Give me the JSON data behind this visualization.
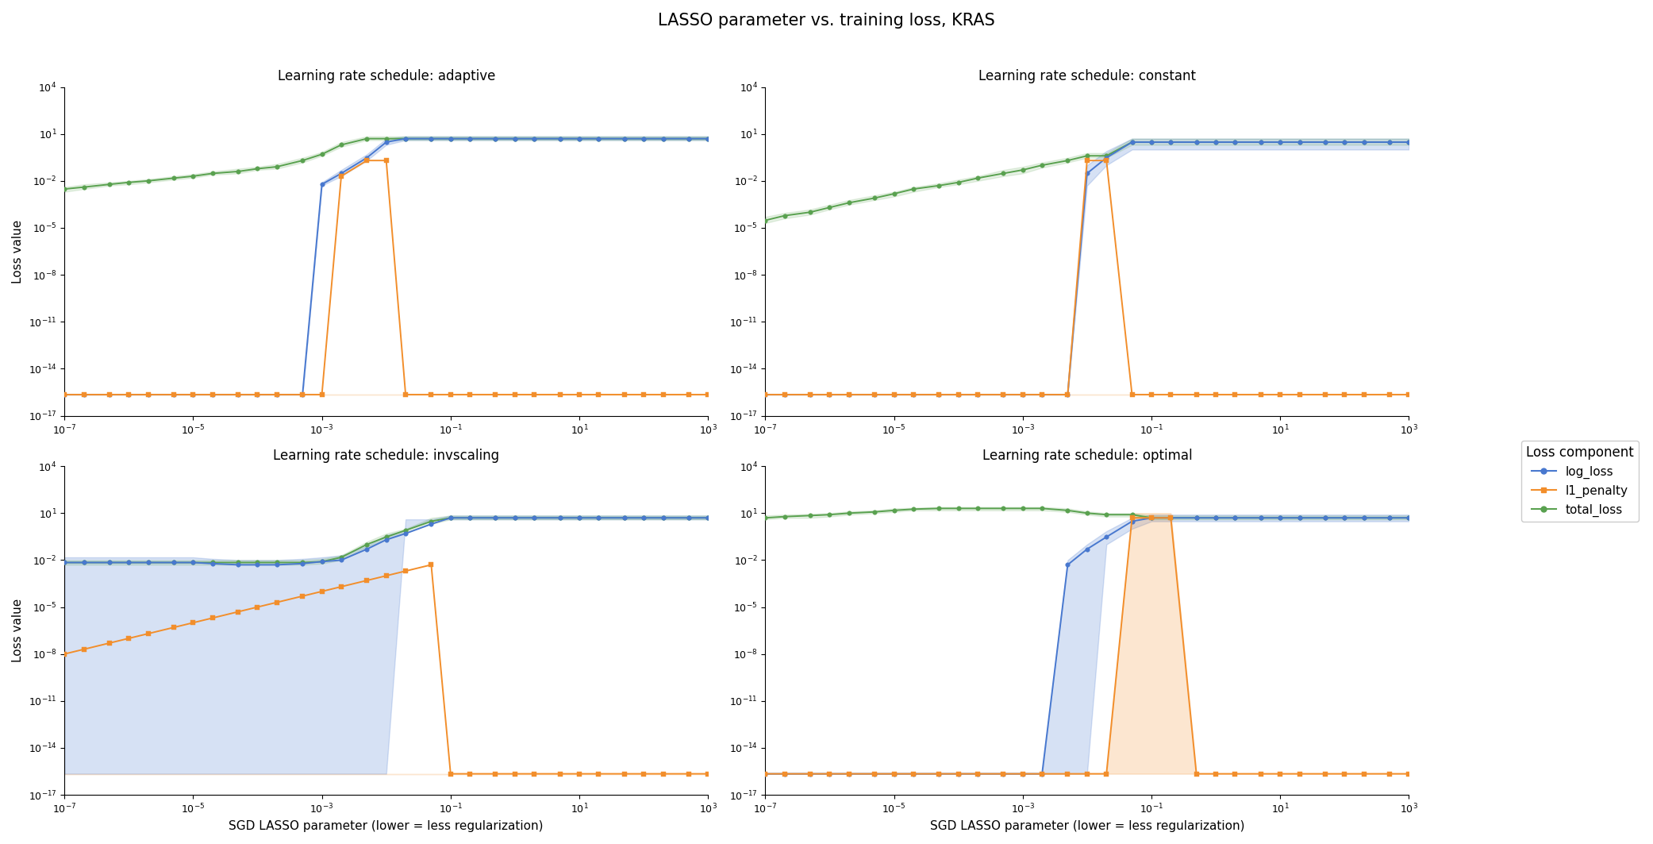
{
  "title": "LASSO parameter vs. training loss, KRAS",
  "xlabel": "SGD LASSO parameter (lower = less regularization)",
  "ylabel": "Loss value",
  "legend_title": "Loss component",
  "subplot_titles": [
    "Learning rate schedule: adaptive",
    "Learning rate schedule: constant",
    "Learning rate schedule: invscaling",
    "Learning rate schedule: optimal"
  ],
  "x_values": [
    1e-07,
    2e-07,
    5e-07,
    1e-06,
    2e-06,
    5e-06,
    1e-05,
    2e-05,
    5e-05,
    0.0001,
    0.0002,
    0.0005,
    0.001,
    0.002,
    0.005,
    0.01,
    0.02,
    0.05,
    0.1,
    0.2,
    0.5,
    1.0,
    2.0,
    5.0,
    10.0,
    20.0,
    50.0,
    100.0,
    200.0,
    500.0,
    1000.0
  ],
  "eps": 2.22e-16,
  "colors": {
    "log_loss": "#4878cf",
    "l1_penalty": "#f28e2b",
    "total_loss": "#59a14f"
  },
  "adaptive": {
    "log_loss_mean": [
      2.22e-16,
      2.22e-16,
      2.22e-16,
      2.22e-16,
      2.22e-16,
      2.22e-16,
      2.22e-16,
      2.22e-16,
      2.22e-16,
      2.22e-16,
      2.22e-16,
      2.22e-16,
      0.006,
      0.03,
      0.3,
      3.0,
      5.0,
      5.0,
      5.0,
      5.0,
      5.0,
      5.0,
      5.0,
      5.0,
      5.0,
      5.0,
      5.0,
      5.0,
      5.0,
      5.0,
      5.0
    ],
    "log_loss_min": [
      2.22e-16,
      2.22e-16,
      2.22e-16,
      2.22e-16,
      2.22e-16,
      2.22e-16,
      2.22e-16,
      2.22e-16,
      2.22e-16,
      2.22e-16,
      2.22e-16,
      2.22e-16,
      0.005,
      0.02,
      0.2,
      2.0,
      4.0,
      4.0,
      4.0,
      4.0,
      4.0,
      4.0,
      4.0,
      4.0,
      4.0,
      4.0,
      4.0,
      4.0,
      4.0,
      4.0,
      4.0
    ],
    "log_loss_max": [
      2.22e-16,
      2.22e-16,
      2.22e-16,
      2.22e-16,
      2.22e-16,
      2.22e-16,
      2.22e-16,
      2.22e-16,
      2.22e-16,
      2.22e-16,
      2.22e-16,
      2.22e-16,
      0.008,
      0.05,
      0.5,
      5.0,
      7.0,
      7.0,
      7.0,
      7.0,
      7.0,
      7.0,
      7.0,
      7.0,
      7.0,
      7.0,
      7.0,
      7.0,
      7.0,
      7.0,
      7.0
    ],
    "l1_penalty_mean": [
      2.22e-16,
      2.22e-16,
      2.22e-16,
      2.22e-16,
      2.22e-16,
      2.22e-16,
      2.22e-16,
      2.22e-16,
      2.22e-16,
      2.22e-16,
      2.22e-16,
      2.22e-16,
      2.22e-16,
      0.02,
      0.2,
      0.2,
      2.22e-16,
      2.22e-16,
      2.22e-16,
      2.22e-16,
      2.22e-16,
      2.22e-16,
      2.22e-16,
      2.22e-16,
      2.22e-16,
      2.22e-16,
      2.22e-16,
      2.22e-16,
      2.22e-16,
      2.22e-16,
      2.22e-16
    ],
    "l1_penalty_min": [
      2.22e-16,
      2.22e-16,
      2.22e-16,
      2.22e-16,
      2.22e-16,
      2.22e-16,
      2.22e-16,
      2.22e-16,
      2.22e-16,
      2.22e-16,
      2.22e-16,
      2.22e-16,
      2.22e-16,
      2.22e-16,
      2.22e-16,
      2.22e-16,
      2.22e-16,
      2.22e-16,
      2.22e-16,
      2.22e-16,
      2.22e-16,
      2.22e-16,
      2.22e-16,
      2.22e-16,
      2.22e-16,
      2.22e-16,
      2.22e-16,
      2.22e-16,
      2.22e-16,
      2.22e-16,
      2.22e-16
    ],
    "l1_penalty_max": [
      2.22e-16,
      2.22e-16,
      2.22e-16,
      2.22e-16,
      2.22e-16,
      2.22e-16,
      2.22e-16,
      2.22e-16,
      2.22e-16,
      2.22e-16,
      2.22e-16,
      2.22e-16,
      2.22e-16,
      2.22e-16,
      2.22e-16,
      2.22e-16,
      2.22e-16,
      2.22e-16,
      2.22e-16,
      2.22e-16,
      2.22e-16,
      2.22e-16,
      2.22e-16,
      2.22e-16,
      2.22e-16,
      2.22e-16,
      2.22e-16,
      2.22e-16,
      2.22e-16,
      2.22e-16,
      2.22e-16
    ],
    "total_loss_mean": [
      0.003,
      0.004,
      0.006,
      0.008,
      0.01,
      0.015,
      0.02,
      0.03,
      0.04,
      0.06,
      0.08,
      0.2,
      0.5,
      2.0,
      5.0,
      5.0,
      5.0,
      5.0,
      5.0,
      5.0,
      5.0,
      5.0,
      5.0,
      5.0,
      5.0,
      5.0,
      5.0,
      5.0,
      5.0,
      5.0,
      5.0
    ],
    "total_loss_min": [
      0.002,
      0.003,
      0.005,
      0.006,
      0.008,
      0.012,
      0.016,
      0.025,
      0.03,
      0.05,
      0.06,
      0.15,
      0.4,
      1.5,
      4.0,
      4.0,
      4.0,
      4.0,
      4.0,
      4.0,
      4.0,
      4.0,
      4.0,
      4.0,
      4.0,
      4.0,
      4.0,
      4.0,
      4.0,
      4.0,
      4.0
    ],
    "total_loss_max": [
      0.004,
      0.006,
      0.008,
      0.01,
      0.013,
      0.02,
      0.027,
      0.04,
      0.06,
      0.08,
      0.12,
      0.3,
      0.7,
      3.0,
      7.0,
      7.0,
      7.0,
      7.0,
      7.0,
      7.0,
      7.0,
      7.0,
      7.0,
      7.0,
      7.0,
      7.0,
      7.0,
      7.0,
      7.0,
      7.0,
      7.0
    ]
  },
  "constant": {
    "log_loss_mean": [
      2.22e-16,
      2.22e-16,
      2.22e-16,
      2.22e-16,
      2.22e-16,
      2.22e-16,
      2.22e-16,
      2.22e-16,
      2.22e-16,
      2.22e-16,
      2.22e-16,
      2.22e-16,
      2.22e-16,
      2.22e-16,
      2.22e-16,
      0.03,
      0.3,
      3.0,
      3.0,
      3.0,
      3.0,
      3.0,
      3.0,
      3.0,
      3.0,
      3.0,
      3.0,
      3.0,
      3.0,
      3.0,
      3.0
    ],
    "log_loss_min": [
      2.22e-16,
      2.22e-16,
      2.22e-16,
      2.22e-16,
      2.22e-16,
      2.22e-16,
      2.22e-16,
      2.22e-16,
      2.22e-16,
      2.22e-16,
      2.22e-16,
      2.22e-16,
      2.22e-16,
      2.22e-16,
      2.22e-16,
      0.005,
      0.1,
      1.0,
      1.0,
      1.0,
      1.0,
      1.0,
      1.0,
      1.0,
      1.0,
      1.0,
      1.0,
      1.0,
      1.0,
      1.0,
      1.0
    ],
    "log_loss_max": [
      2.22e-16,
      2.22e-16,
      2.22e-16,
      2.22e-16,
      2.22e-16,
      2.22e-16,
      2.22e-16,
      2.22e-16,
      2.22e-16,
      2.22e-16,
      2.22e-16,
      2.22e-16,
      2.22e-16,
      2.22e-16,
      2.22e-16,
      0.1,
      0.8,
      5.0,
      5.0,
      5.0,
      5.0,
      5.0,
      5.0,
      5.0,
      5.0,
      5.0,
      5.0,
      5.0,
      5.0,
      5.0,
      5.0
    ],
    "l1_penalty_mean": [
      2.22e-16,
      2.22e-16,
      2.22e-16,
      2.22e-16,
      2.22e-16,
      2.22e-16,
      2.22e-16,
      2.22e-16,
      2.22e-16,
      2.22e-16,
      2.22e-16,
      2.22e-16,
      2.22e-16,
      2.22e-16,
      2.22e-16,
      0.2,
      0.2,
      2.22e-16,
      2.22e-16,
      2.22e-16,
      2.22e-16,
      2.22e-16,
      2.22e-16,
      2.22e-16,
      2.22e-16,
      2.22e-16,
      2.22e-16,
      2.22e-16,
      2.22e-16,
      2.22e-16,
      2.22e-16
    ],
    "l1_penalty_min": [
      2.22e-16,
      2.22e-16,
      2.22e-16,
      2.22e-16,
      2.22e-16,
      2.22e-16,
      2.22e-16,
      2.22e-16,
      2.22e-16,
      2.22e-16,
      2.22e-16,
      2.22e-16,
      2.22e-16,
      2.22e-16,
      2.22e-16,
      2.22e-16,
      2.22e-16,
      2.22e-16,
      2.22e-16,
      2.22e-16,
      2.22e-16,
      2.22e-16,
      2.22e-16,
      2.22e-16,
      2.22e-16,
      2.22e-16,
      2.22e-16,
      2.22e-16,
      2.22e-16,
      2.22e-16,
      2.22e-16
    ],
    "l1_penalty_max": [
      2.22e-16,
      2.22e-16,
      2.22e-16,
      2.22e-16,
      2.22e-16,
      2.22e-16,
      2.22e-16,
      2.22e-16,
      2.22e-16,
      2.22e-16,
      2.22e-16,
      2.22e-16,
      2.22e-16,
      2.22e-16,
      2.22e-16,
      2.22e-16,
      2.22e-16,
      2.22e-16,
      2.22e-16,
      2.22e-16,
      2.22e-16,
      2.22e-16,
      2.22e-16,
      2.22e-16,
      2.22e-16,
      2.22e-16,
      2.22e-16,
      2.22e-16,
      2.22e-16,
      2.22e-16,
      2.22e-16
    ],
    "total_loss_mean": [
      3e-05,
      6e-05,
      0.0001,
      0.0002,
      0.0004,
      0.0008,
      0.0015,
      0.003,
      0.005,
      0.008,
      0.015,
      0.03,
      0.05,
      0.1,
      0.2,
      0.4,
      0.4,
      3.0,
      3.0,
      3.0,
      3.0,
      3.0,
      3.0,
      3.0,
      3.0,
      3.0,
      3.0,
      3.0,
      3.0,
      3.0,
      3.0
    ],
    "total_loss_min": [
      2e-05,
      4e-05,
      7e-05,
      0.00015,
      0.0003,
      0.0006,
      0.001,
      0.002,
      0.004,
      0.006,
      0.01,
      0.02,
      0.03,
      0.07,
      0.15,
      0.3,
      0.3,
      2.0,
      2.0,
      2.0,
      2.0,
      2.0,
      2.0,
      2.0,
      2.0,
      2.0,
      2.0,
      2.0,
      2.0,
      2.0,
      2.0
    ],
    "total_loss_max": [
      5e-05,
      9e-05,
      0.00015,
      0.0003,
      0.0006,
      0.0012,
      0.002,
      0.004,
      0.007,
      0.012,
      0.02,
      0.05,
      0.08,
      0.15,
      0.3,
      0.6,
      0.6,
      5.0,
      5.0,
      5.0,
      5.0,
      5.0,
      5.0,
      5.0,
      5.0,
      5.0,
      5.0,
      5.0,
      5.0,
      5.0,
      5.0
    ]
  },
  "invscaling": {
    "log_loss_mean": [
      0.007,
      0.007,
      0.007,
      0.007,
      0.007,
      0.007,
      0.007,
      0.006,
      0.005,
      0.005,
      0.005,
      0.006,
      0.008,
      0.01,
      0.05,
      0.2,
      0.5,
      2.0,
      5.0,
      5.0,
      5.0,
      5.0,
      5.0,
      5.0,
      5.0,
      5.0,
      5.0,
      5.0,
      5.0,
      5.0,
      5.0
    ],
    "log_loss_min": [
      2.22e-16,
      2.22e-16,
      2.22e-16,
      2.22e-16,
      2.22e-16,
      2.22e-16,
      2.22e-16,
      2.22e-16,
      2.22e-16,
      2.22e-16,
      2.22e-16,
      2.22e-16,
      2.22e-16,
      2.22e-16,
      2.22e-16,
      2.22e-16,
      4.0,
      4.0,
      4.0,
      4.0,
      4.0,
      4.0,
      4.0,
      4.0,
      4.0,
      4.0,
      4.0,
      4.0,
      4.0,
      4.0,
      4.0
    ],
    "log_loss_max": [
      0.015,
      0.015,
      0.015,
      0.015,
      0.015,
      0.015,
      0.015,
      0.012,
      0.01,
      0.01,
      0.01,
      0.012,
      0.015,
      0.02,
      0.08,
      0.4,
      0.8,
      4.0,
      7.0,
      7.0,
      7.0,
      7.0,
      7.0,
      7.0,
      7.0,
      7.0,
      7.0,
      7.0,
      7.0,
      7.0,
      7.0
    ],
    "l1_penalty_mean": [
      1e-08,
      2e-08,
      5e-08,
      1e-07,
      2e-07,
      5e-07,
      1e-06,
      2e-06,
      5e-06,
      1e-05,
      2e-05,
      5e-05,
      0.0001,
      0.0002,
      0.0005,
      0.001,
      0.002,
      0.005,
      2.22e-16,
      2.22e-16,
      2.22e-16,
      2.22e-16,
      2.22e-16,
      2.22e-16,
      2.22e-16,
      2.22e-16,
      2.22e-16,
      2.22e-16,
      2.22e-16,
      2.22e-16,
      2.22e-16
    ],
    "l1_penalty_min": [
      2.22e-16,
      2.22e-16,
      2.22e-16,
      2.22e-16,
      2.22e-16,
      2.22e-16,
      2.22e-16,
      2.22e-16,
      2.22e-16,
      2.22e-16,
      2.22e-16,
      2.22e-16,
      2.22e-16,
      2.22e-16,
      2.22e-16,
      2.22e-16,
      2.22e-16,
      2.22e-16,
      2.22e-16,
      2.22e-16,
      2.22e-16,
      2.22e-16,
      2.22e-16,
      2.22e-16,
      2.22e-16,
      2.22e-16,
      2.22e-16,
      2.22e-16,
      2.22e-16,
      2.22e-16,
      2.22e-16
    ],
    "l1_penalty_max": [
      2.22e-16,
      2.22e-16,
      2.22e-16,
      2.22e-16,
      2.22e-16,
      2.22e-16,
      2.22e-16,
      2.22e-16,
      2.22e-16,
      2.22e-16,
      2.22e-16,
      2.22e-16,
      2.22e-16,
      2.22e-16,
      2.22e-16,
      2.22e-16,
      2.22e-16,
      2.22e-16,
      2.22e-16,
      2.22e-16,
      2.22e-16,
      2.22e-16,
      2.22e-16,
      2.22e-16,
      2.22e-16,
      2.22e-16,
      2.22e-16,
      2.22e-16,
      2.22e-16,
      2.22e-16,
      2.22e-16
    ],
    "total_loss_mean": [
      0.007,
      0.007,
      0.007,
      0.007,
      0.007,
      0.007,
      0.007,
      0.007,
      0.007,
      0.007,
      0.007,
      0.007,
      0.008,
      0.015,
      0.1,
      0.3,
      0.8,
      3.0,
      5.0,
      5.0,
      5.0,
      5.0,
      5.0,
      5.0,
      5.0,
      5.0,
      5.0,
      5.0,
      5.0,
      5.0,
      5.0
    ],
    "total_loss_min": [
      0.005,
      0.005,
      0.005,
      0.005,
      0.005,
      0.005,
      0.005,
      0.005,
      0.005,
      0.005,
      0.005,
      0.005,
      0.006,
      0.01,
      0.07,
      0.2,
      0.6,
      2.0,
      4.0,
      4.0,
      4.0,
      4.0,
      4.0,
      4.0,
      4.0,
      4.0,
      4.0,
      4.0,
      4.0,
      4.0,
      4.0
    ],
    "total_loss_max": [
      0.01,
      0.01,
      0.01,
      0.01,
      0.01,
      0.01,
      0.01,
      0.01,
      0.01,
      0.01,
      0.01,
      0.01,
      0.012,
      0.02,
      0.15,
      0.5,
      1.0,
      5.0,
      7.0,
      7.0,
      7.0,
      7.0,
      7.0,
      7.0,
      7.0,
      7.0,
      7.0,
      7.0,
      7.0,
      7.0,
      7.0
    ]
  },
  "optimal": {
    "log_loss_mean": [
      2.22e-16,
      2.22e-16,
      2.22e-16,
      2.22e-16,
      2.22e-16,
      2.22e-16,
      2.22e-16,
      2.22e-16,
      2.22e-16,
      2.22e-16,
      2.22e-16,
      2.22e-16,
      2.22e-16,
      2.22e-16,
      0.005,
      0.05,
      0.3,
      3.0,
      5.0,
      5.0,
      5.0,
      5.0,
      5.0,
      5.0,
      5.0,
      5.0,
      5.0,
      5.0,
      5.0,
      5.0,
      5.0
    ],
    "log_loss_min": [
      2.22e-16,
      2.22e-16,
      2.22e-16,
      2.22e-16,
      2.22e-16,
      2.22e-16,
      2.22e-16,
      2.22e-16,
      2.22e-16,
      2.22e-16,
      2.22e-16,
      2.22e-16,
      2.22e-16,
      2.22e-16,
      2.22e-16,
      2.22e-16,
      0.1,
      1.0,
      3.0,
      3.0,
      3.0,
      3.0,
      3.0,
      3.0,
      3.0,
      3.0,
      3.0,
      3.0,
      3.0,
      3.0,
      3.0
    ],
    "log_loss_max": [
      2.22e-16,
      2.22e-16,
      2.22e-16,
      2.22e-16,
      2.22e-16,
      2.22e-16,
      2.22e-16,
      2.22e-16,
      2.22e-16,
      2.22e-16,
      2.22e-16,
      2.22e-16,
      2.22e-16,
      2.22e-16,
      0.01,
      0.1,
      0.7,
      5.0,
      8.0,
      8.0,
      8.0,
      8.0,
      8.0,
      8.0,
      8.0,
      8.0,
      8.0,
      8.0,
      8.0,
      8.0,
      8.0
    ],
    "l1_penalty_mean": [
      2.22e-16,
      2.22e-16,
      2.22e-16,
      2.22e-16,
      2.22e-16,
      2.22e-16,
      2.22e-16,
      2.22e-16,
      2.22e-16,
      2.22e-16,
      2.22e-16,
      2.22e-16,
      2.22e-16,
      2.22e-16,
      2.22e-16,
      2.22e-16,
      2.22e-16,
      5.0,
      5.0,
      5.0,
      2.22e-16,
      2.22e-16,
      2.22e-16,
      2.22e-16,
      2.22e-16,
      2.22e-16,
      2.22e-16,
      2.22e-16,
      2.22e-16,
      2.22e-16,
      2.22e-16
    ],
    "l1_penalty_min": [
      2.22e-16,
      2.22e-16,
      2.22e-16,
      2.22e-16,
      2.22e-16,
      2.22e-16,
      2.22e-16,
      2.22e-16,
      2.22e-16,
      2.22e-16,
      2.22e-16,
      2.22e-16,
      2.22e-16,
      2.22e-16,
      2.22e-16,
      2.22e-16,
      2.22e-16,
      2.22e-16,
      2.22e-16,
      2.22e-16,
      2.22e-16,
      2.22e-16,
      2.22e-16,
      2.22e-16,
      2.22e-16,
      2.22e-16,
      2.22e-16,
      2.22e-16,
      2.22e-16,
      2.22e-16,
      2.22e-16
    ],
    "l1_penalty_max": [
      2.22e-16,
      2.22e-16,
      2.22e-16,
      2.22e-16,
      2.22e-16,
      2.22e-16,
      2.22e-16,
      2.22e-16,
      2.22e-16,
      2.22e-16,
      2.22e-16,
      2.22e-16,
      2.22e-16,
      2.22e-16,
      2.22e-16,
      2.22e-16,
      2.22e-16,
      10.0,
      10.0,
      10.0,
      2.22e-16,
      2.22e-16,
      2.22e-16,
      2.22e-16,
      2.22e-16,
      2.22e-16,
      2.22e-16,
      2.22e-16,
      2.22e-16,
      2.22e-16,
      2.22e-16
    ],
    "total_loss_mean": [
      5.0,
      6.0,
      7.0,
      8.0,
      10.0,
      12.0,
      15.0,
      18.0,
      20.0,
      20.0,
      20.0,
      20.0,
      20.0,
      20.0,
      15.0,
      10.0,
      8.0,
      8.0,
      5.0,
      5.0,
      5.0,
      5.0,
      5.0,
      5.0,
      5.0,
      5.0,
      5.0,
      5.0,
      5.0,
      5.0,
      5.0
    ],
    "total_loss_min": [
      4.0,
      5.0,
      5.0,
      6.0,
      8.0,
      10.0,
      12.0,
      15.0,
      15.0,
      15.0,
      15.0,
      15.0,
      15.0,
      15.0,
      12.0,
      8.0,
      6.0,
      6.0,
      4.0,
      4.0,
      4.0,
      4.0,
      4.0,
      4.0,
      4.0,
      4.0,
      4.0,
      4.0,
      4.0,
      4.0,
      4.0
    ],
    "total_loss_max": [
      7.0,
      8.0,
      9.0,
      10.0,
      13.0,
      15.0,
      20.0,
      22.0,
      25.0,
      25.0,
      25.0,
      25.0,
      25.0,
      25.0,
      20.0,
      13.0,
      10.0,
      10.0,
      7.0,
      7.0,
      7.0,
      7.0,
      7.0,
      7.0,
      7.0,
      7.0,
      7.0,
      7.0,
      7.0,
      7.0,
      7.0
    ]
  }
}
